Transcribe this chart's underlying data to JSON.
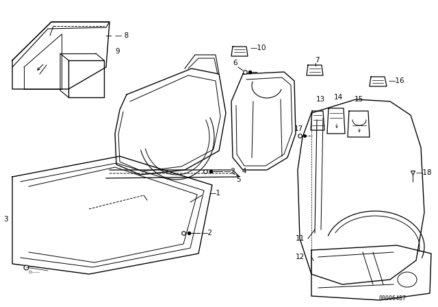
{
  "background_color": "#ffffff",
  "part_number": "00006487",
  "line_color": "#000000",
  "text_color": "#000000",
  "font_size": 7.5
}
